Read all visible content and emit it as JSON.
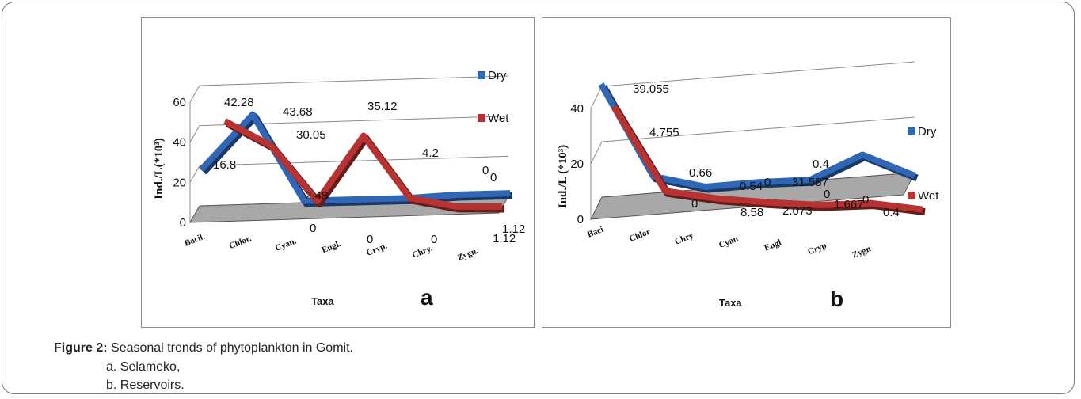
{
  "caption": {
    "label": "Figure 2:",
    "text": "Seasonal trends of phytoplankton in Gomit.",
    "items": [
      "a.  Selameko,",
      "b.  Reservoirs."
    ]
  },
  "colors": {
    "dry": "#2f66b5",
    "wet": "#b83232",
    "floor": "#a8a8a8"
  },
  "chart_data": [
    {
      "type": "line",
      "panel_letter": "a",
      "xlabel": "Taxa",
      "ylabel": "Ind./L(*10³)",
      "ylim": [
        0,
        60
      ],
      "yticks": [
        0,
        20,
        40,
        60
      ],
      "categories": [
        "Bacil.",
        "Chlor.",
        "Cyan.",
        "Eugl.",
        "Cryp.",
        "Chry.",
        "Zygn."
      ],
      "legend_position": "right",
      "series": [
        {
          "name": "Dry",
          "values": [
            16.8,
            43.68,
            0,
            0,
            0,
            1.12,
            1.12
          ]
        },
        {
          "name": "Wet",
          "values": [
            42.28,
            30.05,
            2.48,
            35.12,
            4.2,
            0,
            0
          ]
        }
      ],
      "data_labels": [
        {
          "series": "Dry",
          "text": "16.8"
        },
        {
          "series": "Dry",
          "text": "43.68"
        },
        {
          "series": "Dry",
          "text": "0"
        },
        {
          "series": "Dry",
          "text": "0"
        },
        {
          "series": "Dry",
          "text": "0"
        },
        {
          "series": "Dry",
          "text": "1.12"
        },
        {
          "series": "Dry",
          "text": "1.12"
        },
        {
          "series": "Wet",
          "text": "42.28"
        },
        {
          "series": "Wet",
          "text": "30.05"
        },
        {
          "series": "Wet",
          "text": "2.48"
        },
        {
          "series": "Wet",
          "text": "35.12"
        },
        {
          "series": "Wet",
          "text": "4.2"
        },
        {
          "series": "Wet",
          "text": "0"
        },
        {
          "series": "Wet",
          "text": "0"
        }
      ]
    },
    {
      "type": "line",
      "panel_letter": "b",
      "xlabel": "Taxa",
      "ylabel": "Ind./L (*10³)",
      "ylim": [
        0,
        40
      ],
      "yticks": [
        0,
        20,
        40
      ],
      "categories": [
        "Baci",
        "Chlor",
        "Chry",
        "Cyan",
        "Eugl",
        "Cryp",
        "Zygn"
      ],
      "legend_position": "right",
      "series": [
        {
          "name": "Dry",
          "values": [
            39.055,
            4.755,
            0,
            0.66,
            0.54,
            8.58,
            0
          ]
        },
        {
          "name": "Wet",
          "values": [
            31.587,
            2.073,
            0.4,
            0,
            0,
            1.667,
            0.4
          ]
        }
      ],
      "data_labels": [
        {
          "series": "Dry",
          "text": "39.055"
        },
        {
          "series": "Dry",
          "text": "4.755"
        },
        {
          "series": "Dry",
          "text": "0"
        },
        {
          "series": "Dry",
          "text": "0.66"
        },
        {
          "series": "Dry",
          "text": "0.54"
        },
        {
          "series": "Dry",
          "text": "8.58"
        },
        {
          "series": "Dry",
          "text": "0"
        },
        {
          "series": "Wet",
          "text": "31.587"
        },
        {
          "series": "Wet",
          "text": "2.073"
        },
        {
          "series": "Wet",
          "text": "0.4"
        },
        {
          "series": "Wet",
          "text": "0"
        },
        {
          "series": "Wet",
          "text": "0"
        },
        {
          "series": "Wet",
          "text": "1.667"
        },
        {
          "series": "Wet",
          "text": "0.4"
        }
      ]
    }
  ]
}
